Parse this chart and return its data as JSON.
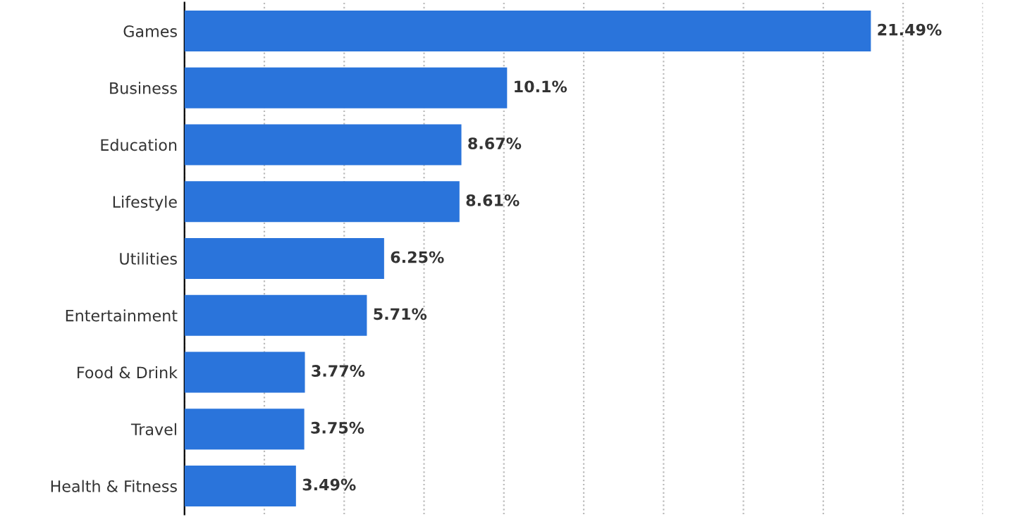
{
  "chart_data": {
    "type": "bar",
    "orientation": "horizontal",
    "categories": [
      "Games",
      "Business",
      "Education",
      "Lifestyle",
      "Utilities",
      "Entertainment",
      "Food & Drink",
      "Travel",
      "Health & Fitness"
    ],
    "values": [
      21.49,
      10.1,
      8.67,
      8.61,
      6.25,
      5.71,
      3.77,
      3.75,
      3.49
    ],
    "value_labels": [
      "21.49%",
      "10.1%",
      "8.67%",
      "8.61%",
      "6.25%",
      "5.71%",
      "3.77%",
      "3.75%",
      "3.49%"
    ],
    "color": "#2a74db",
    "xlim": [
      0,
      25
    ],
    "xticks": [
      {
        "value": 0,
        "label": null
      },
      {
        "value": 2.5,
        "label": null
      },
      {
        "value": 5,
        "label": null
      },
      {
        "value": 7.5,
        "label": null
      },
      {
        "value": 10,
        "label": null
      },
      {
        "value": 12.5,
        "label": null
      },
      {
        "value": 15,
        "label": null
      },
      {
        "value": 17.5,
        "label": null
      },
      {
        "value": 20,
        "label": null
      },
      {
        "value": 22.5,
        "label": null
      },
      {
        "value": 25,
        "label": null
      }
    ],
    "tick_labels": "y",
    "grid": "x"
  }
}
